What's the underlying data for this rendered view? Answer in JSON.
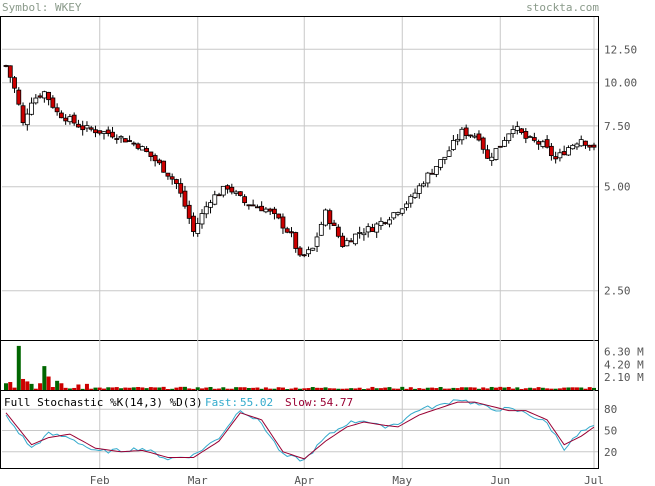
{
  "header": {
    "symbol_text": "Symbol: WKEY",
    "source_text": "stockta.com"
  },
  "colors": {
    "background": "#ffffff",
    "frame": "#000000",
    "grid": "#c8c8c8",
    "header_text": "#8a9a8a",
    "axis_text": "#555555",
    "up_fill": "#ffffff",
    "down_fill": "#cc0000",
    "vol_up": "#006600",
    "vol_down": "#cc0000",
    "fast_line": "#33aacc",
    "slow_line": "#990033"
  },
  "chart_data": [
    {
      "type": "candlestick",
      "log_scale": true,
      "y_ticks": [
        2.5,
        5.0,
        7.5,
        10.0,
        12.5
      ],
      "ylim": [
        1.8,
        15.5
      ],
      "x_ticks": [
        "Feb",
        "Mar",
        "Apr",
        "May",
        "Jun",
        "Jul"
      ],
      "grid": true,
      "anchors": [
        {
          "i": 0,
          "v": 11.2
        },
        {
          "i": 2,
          "v": 9.6
        },
        {
          "i": 4,
          "v": 7.6
        },
        {
          "i": 6,
          "v": 8.9
        },
        {
          "i": 9,
          "v": 9.4
        },
        {
          "i": 12,
          "v": 8.2
        },
        {
          "i": 18,
          "v": 7.4
        },
        {
          "i": 25,
          "v": 7.1
        },
        {
          "i": 31,
          "v": 6.6
        },
        {
          "i": 36,
          "v": 5.8
        },
        {
          "i": 40,
          "v": 5.1
        },
        {
          "i": 44,
          "v": 3.7
        },
        {
          "i": 48,
          "v": 4.6
        },
        {
          "i": 52,
          "v": 5.0
        },
        {
          "i": 56,
          "v": 4.5
        },
        {
          "i": 61,
          "v": 4.3
        },
        {
          "i": 64,
          "v": 4.0
        },
        {
          "i": 67,
          "v": 3.6
        },
        {
          "i": 69,
          "v": 3.1
        },
        {
          "i": 72,
          "v": 3.3
        },
        {
          "i": 75,
          "v": 4.2
        },
        {
          "i": 79,
          "v": 3.4
        },
        {
          "i": 83,
          "v": 3.7
        },
        {
          "i": 86,
          "v": 3.8
        },
        {
          "i": 90,
          "v": 4.1
        },
        {
          "i": 95,
          "v": 4.6
        },
        {
          "i": 99,
          "v": 5.4
        },
        {
          "i": 103,
          "v": 6.1
        },
        {
          "i": 107,
          "v": 7.2
        },
        {
          "i": 111,
          "v": 7.0
        },
        {
          "i": 113,
          "v": 6.0
        },
        {
          "i": 116,
          "v": 6.6
        },
        {
          "i": 119,
          "v": 7.5
        },
        {
          "i": 122,
          "v": 6.9
        },
        {
          "i": 126,
          "v": 6.6
        },
        {
          "i": 129,
          "v": 6.0
        },
        {
          "i": 132,
          "v": 6.5
        },
        {
          "i": 135,
          "v": 6.9
        },
        {
          "i": 138,
          "v": 6.4
        }
      ],
      "count": 139
    },
    {
      "type": "bar",
      "title": "",
      "y_ticks_labels": [
        "6.30 M",
        "4.20 M",
        "2.10 M"
      ],
      "y_ticks": [
        6.3,
        4.2,
        2.1
      ],
      "ylim": [
        0,
        8.0
      ],
      "unit": "M",
      "spikes": [
        {
          "i": 0,
          "v": 1.1
        },
        {
          "i": 1,
          "v": 1.3
        },
        {
          "i": 3,
          "v": 7.2
        },
        {
          "i": 4,
          "v": 1.8
        },
        {
          "i": 5,
          "v": 1.4
        },
        {
          "i": 6,
          "v": 1.0
        },
        {
          "i": 8,
          "v": 1.1
        },
        {
          "i": 9,
          "v": 3.9
        },
        {
          "i": 10,
          "v": 2.2
        },
        {
          "i": 12,
          "v": 1.5
        },
        {
          "i": 13,
          "v": 1.1
        },
        {
          "i": 17,
          "v": 0.9
        },
        {
          "i": 19,
          "v": 1.0
        }
      ],
      "baseline": 0.4
    },
    {
      "type": "line",
      "title": "Full Stochastic %K(14,3) %D(3)",
      "y_ticks": [
        20,
        50,
        80
      ],
      "ylim": [
        0,
        100
      ],
      "series": [
        {
          "name": "Fast",
          "last_label": "55.02",
          "anchors": [
            {
              "i": 0,
              "v": 70
            },
            {
              "i": 6,
              "v": 25
            },
            {
              "i": 10,
              "v": 45
            },
            {
              "i": 15,
              "v": 40
            },
            {
              "i": 21,
              "v": 20
            },
            {
              "i": 27,
              "v": 22
            },
            {
              "i": 32,
              "v": 25
            },
            {
              "i": 38,
              "v": 10
            },
            {
              "i": 44,
              "v": 15
            },
            {
              "i": 50,
              "v": 40
            },
            {
              "i": 55,
              "v": 80
            },
            {
              "i": 60,
              "v": 60
            },
            {
              "i": 65,
              "v": 15
            },
            {
              "i": 70,
              "v": 8
            },
            {
              "i": 75,
              "v": 40
            },
            {
              "i": 80,
              "v": 60
            },
            {
              "i": 84,
              "v": 65
            },
            {
              "i": 88,
              "v": 55
            },
            {
              "i": 92,
              "v": 60
            },
            {
              "i": 97,
              "v": 80
            },
            {
              "i": 102,
              "v": 85
            },
            {
              "i": 106,
              "v": 95
            },
            {
              "i": 110,
              "v": 88
            },
            {
              "i": 114,
              "v": 80
            },
            {
              "i": 118,
              "v": 80
            },
            {
              "i": 122,
              "v": 75
            },
            {
              "i": 127,
              "v": 60
            },
            {
              "i": 131,
              "v": 25
            },
            {
              "i": 135,
              "v": 48
            },
            {
              "i": 138,
              "v": 55
            }
          ]
        },
        {
          "name": "Slow",
          "last_label": "54.77",
          "anchors": [
            {
              "i": 0,
              "v": 75
            },
            {
              "i": 6,
              "v": 30
            },
            {
              "i": 10,
              "v": 40
            },
            {
              "i": 15,
              "v": 45
            },
            {
              "i": 21,
              "v": 25
            },
            {
              "i": 27,
              "v": 20
            },
            {
              "i": 32,
              "v": 22
            },
            {
              "i": 38,
              "v": 12
            },
            {
              "i": 44,
              "v": 12
            },
            {
              "i": 50,
              "v": 35
            },
            {
              "i": 55,
              "v": 75
            },
            {
              "i": 60,
              "v": 65
            },
            {
              "i": 65,
              "v": 20
            },
            {
              "i": 70,
              "v": 10
            },
            {
              "i": 75,
              "v": 35
            },
            {
              "i": 80,
              "v": 55
            },
            {
              "i": 84,
              "v": 62
            },
            {
              "i": 88,
              "v": 58
            },
            {
              "i": 92,
              "v": 55
            },
            {
              "i": 97,
              "v": 72
            },
            {
              "i": 102,
              "v": 82
            },
            {
              "i": 106,
              "v": 90
            },
            {
              "i": 110,
              "v": 90
            },
            {
              "i": 114,
              "v": 84
            },
            {
              "i": 118,
              "v": 78
            },
            {
              "i": 122,
              "v": 78
            },
            {
              "i": 127,
              "v": 65
            },
            {
              "i": 131,
              "v": 30
            },
            {
              "i": 135,
              "v": 42
            },
            {
              "i": 138,
              "v": 54.77
            }
          ]
        }
      ]
    }
  ],
  "stoch_labels": {
    "title": "Full Stochastic %K(14,3) %D(3)",
    "fast_prefix": "Fast:",
    "fast_value": "55.02",
    "slow_prefix": "Slow:",
    "slow_value": "54.77"
  }
}
